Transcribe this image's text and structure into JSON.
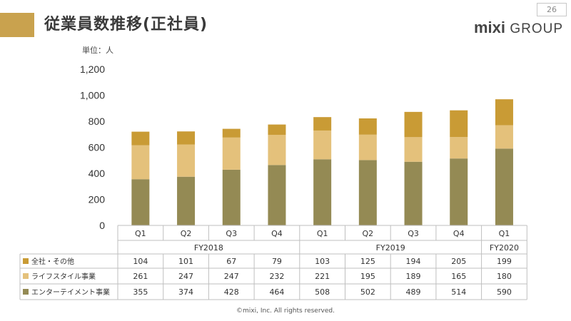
{
  "slide": {
    "title": "従業員数推移(正社員)",
    "page_number": "26",
    "unit_label": "単位：人",
    "footer": "©mixi, Inc. All rights reserved.",
    "accent_color": "#C9A24E"
  },
  "logo": {
    "brand": "mixi",
    "suffix": "GROUP",
    "logo-icon": "mixi-logo-icon"
  },
  "chart_data": {
    "type": "bar",
    "stacked": true,
    "categories": [
      "Q1",
      "Q2",
      "Q3",
      "Q4",
      "Q1",
      "Q2",
      "Q3",
      "Q4",
      "Q1"
    ],
    "fiscal_years": [
      {
        "label": "FY2018",
        "count": 4
      },
      {
        "label": "FY2019",
        "count": 4
      },
      {
        "label": "FY2020",
        "count": 1
      }
    ],
    "series": [
      {
        "name": "エンターテイメント事業",
        "color": "#948A54",
        "values": [
          355,
          374,
          428,
          464,
          508,
          502,
          489,
          514,
          590
        ]
      },
      {
        "name": "ライフスタイル事業",
        "color": "#E4C17B",
        "values": [
          261,
          247,
          247,
          232,
          221,
          195,
          189,
          165,
          180
        ]
      },
      {
        "name": "全社・その他",
        "color": "#C99B35",
        "values": [
          104,
          101,
          67,
          79,
          103,
          125,
          194,
          205,
          199
        ]
      }
    ],
    "table_row_order": [
      2,
      1,
      0
    ],
    "ylim": [
      0,
      1200
    ],
    "yticks": [
      "0",
      "200",
      "400",
      "600",
      "800",
      "1,000",
      "1,200"
    ],
    "grid": false,
    "legend": "table-left"
  }
}
